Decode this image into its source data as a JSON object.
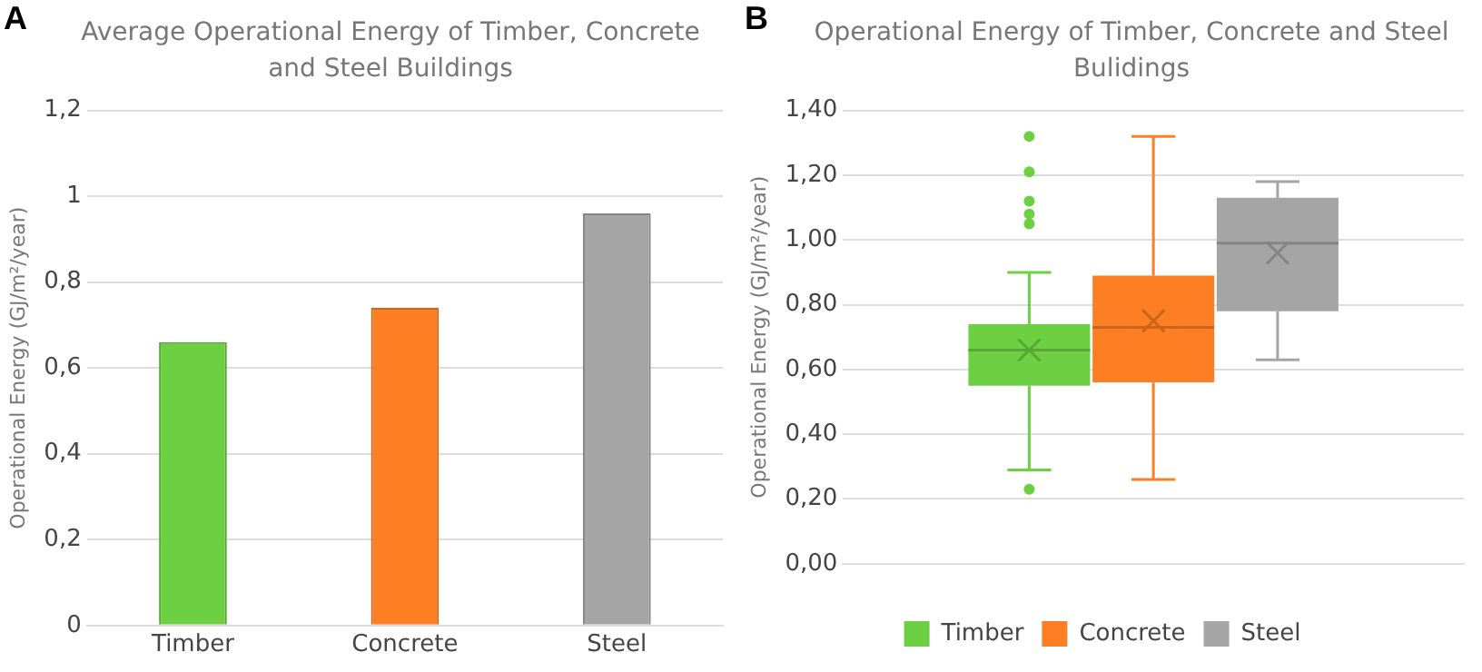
{
  "chart_data": [
    {
      "type": "bar",
      "title": "Average Operational Energy of Timber, Concrete and Steel Buildings",
      "ylabel": "Operational Energy (GJ/m²/year)",
      "annotations": [
        "A"
      ],
      "categories": [
        "Timber",
        "Concrete",
        "Steel"
      ],
      "values": [
        0.66,
        0.74,
        0.96
      ],
      "colors": [
        "#6dd043",
        "#fd7e23",
        "#a5a5a5"
      ],
      "ylim": [
        0,
        1.2
      ],
      "yticks": [
        0,
        {
          "value": 0.2,
          "label": "0,2"
        },
        {
          "value": 0.4,
          "label": "0,4"
        },
        {
          "value": 0.6,
          "label": "0,6"
        },
        {
          "value": 0.8,
          "label": "0,8"
        },
        1,
        {
          "value": 1.2,
          "label": "1,2"
        }
      ],
      "grid": "y",
      "legend": false
    },
    {
      "type": "box",
      "title": "Operational Energy of Timber, Concrete and Steel Bulidings",
      "ylabel": "Operational Energy (GJ/m²/year)",
      "annotations": [
        "B"
      ],
      "categories": [
        null
      ],
      "series": [
        {
          "name": "Timber",
          "color": "#6dd043",
          "boxes": [
            {
              "low": 0.29,
              "q1": 0.55,
              "median": 0.66,
              "q3": 0.74,
              "high": 0.9,
              "mean": 0.66,
              "outliers": [
                1.32,
                1.21,
                1.12,
                1.08,
                1.05,
                0.23
              ]
            }
          ]
        },
        {
          "name": "Concrete",
          "color": "#fd7e23",
          "boxes": [
            {
              "low": 0.26,
              "q1": 0.56,
              "median": 0.73,
              "q3": 0.89,
              "high": 1.32,
              "mean": 0.75
            }
          ]
        },
        {
          "name": "Steel",
          "color": "#a5a5a5",
          "boxes": [
            {
              "low": 0.63,
              "q1": 0.78,
              "median": 0.99,
              "q3": 1.13,
              "high": 1.18,
              "mean": 0.96
            }
          ]
        }
      ],
      "ylim": [
        0,
        1.4
      ],
      "yticks": [
        {
          "value": 0,
          "label": "0,00"
        },
        {
          "value": 0.2,
          "label": "0,20"
        },
        {
          "value": 0.4,
          "label": "0,40"
        },
        {
          "value": 0.6,
          "label": "0,60"
        },
        {
          "value": 0.8,
          "label": "0,80"
        },
        {
          "value": 1,
          "label": "1,00"
        },
        {
          "value": 1.2,
          "label": "1,20"
        },
        {
          "value": 1.4,
          "label": "1,40"
        }
      ],
      "grid": "y",
      "legend": "bottom"
    }
  ]
}
